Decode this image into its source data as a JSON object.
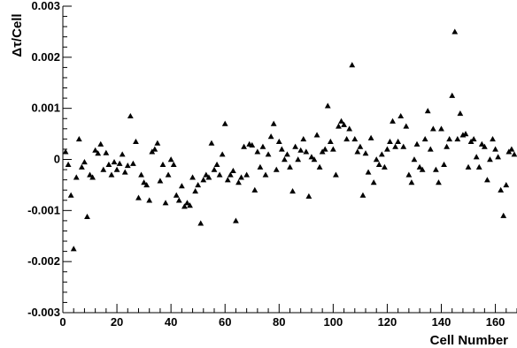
{
  "chart_data": {
    "type": "scatter",
    "title": "",
    "xlabel": "Cell Number",
    "ylabel": "Δτ/Cell",
    "xlim": [
      0,
      168
    ],
    "ylim": [
      -0.003,
      0.003
    ],
    "x_ticks": [
      0,
      20,
      40,
      60,
      80,
      100,
      120,
      140,
      160
    ],
    "x_tick_labels": [
      "0",
      "20",
      "40",
      "60",
      "80",
      "100",
      "120",
      "140",
      "160"
    ],
    "y_ticks": [
      -0.003,
      -0.002,
      -0.001,
      0,
      0.001,
      0.002,
      0.003
    ],
    "y_tick_labels": [
      "-0.003",
      "-0.002",
      "-0.001",
      "0",
      "0.001",
      "0.002",
      "0.003"
    ],
    "grid": false,
    "marker": "triangle",
    "marker_color": "#000000",
    "x": [
      1,
      2,
      3,
      4,
      5,
      6,
      7,
      8,
      9,
      10,
      11,
      12,
      13,
      14,
      15,
      16,
      17,
      18,
      19,
      20,
      21,
      22,
      23,
      24,
      25,
      26,
      27,
      28,
      29,
      30,
      31,
      32,
      33,
      34,
      35,
      36,
      37,
      38,
      39,
      40,
      41,
      42,
      43,
      44,
      45,
      46,
      47,
      48,
      49,
      50,
      51,
      52,
      53,
      54,
      55,
      56,
      57,
      58,
      59,
      60,
      61,
      62,
      63,
      64,
      65,
      66,
      67,
      68,
      69,
      70,
      71,
      72,
      73,
      74,
      75,
      76,
      77,
      78,
      79,
      80,
      81,
      82,
      83,
      84,
      85,
      86,
      87,
      88,
      89,
      90,
      91,
      92,
      93,
      94,
      95,
      96,
      97,
      98,
      99,
      100,
      101,
      102,
      103,
      104,
      105,
      106,
      107,
      108,
      109,
      110,
      111,
      112,
      113,
      114,
      115,
      116,
      117,
      118,
      119,
      120,
      121,
      122,
      123,
      124,
      125,
      126,
      127,
      128,
      129,
      130,
      131,
      132,
      133,
      134,
      135,
      136,
      137,
      138,
      139,
      140,
      141,
      142,
      143,
      144,
      145,
      146,
      147,
      148,
      149,
      150,
      151,
      152,
      153,
      154,
      155,
      156,
      157,
      158,
      159,
      160,
      161,
      162,
      163,
      164,
      165,
      166,
      167
    ],
    "y": [
      0.00015,
      -0.0001,
      -0.0007,
      -0.00175,
      -0.00035,
      0.0004,
      -0.00015,
      -5e-05,
      -0.00112,
      -0.0003,
      -0.00035,
      0.00018,
      0.00012,
      0.0003,
      -0.0002,
      0.00013,
      -0.0001,
      -0.0003,
      -5e-05,
      -0.0002,
      -8e-05,
      0.0001,
      -0.00025,
      -0.00012,
      0.00085,
      -8e-05,
      0.00035,
      -0.00075,
      -0.0003,
      -0.00045,
      -0.0005,
      -0.0008,
      0.00015,
      0.0002,
      0.00032,
      -0.00042,
      -0.0001,
      -0.00085,
      -0.0003,
      0.0,
      -0.0001,
      -0.0007,
      -0.0008,
      -0.00052,
      -0.00092,
      -0.00085,
      -0.0009,
      -0.00035,
      -0.00062,
      -0.0005,
      -0.00125,
      -0.0004,
      -0.0003,
      -0.00035,
      0.00032,
      -0.0002,
      -0.0001,
      -0.0003,
      0.0001,
      0.0007,
      -0.0004,
      -0.0003,
      -0.00022,
      -0.0012,
      -0.00045,
      -0.00035,
      0.00025,
      -0.0003,
      0.0003,
      0.00028,
      -0.0006,
      0.00015,
      -0.00015,
      0.00025,
      -0.0003,
      0.0001,
      0.00045,
      0.0007,
      -0.0002,
      0.00035,
      0.0002,
      0.0,
      0.0001,
      -0.00015,
      -0.00062,
      0.00025,
      0.0,
      0.00018,
      0.0004,
      0.00015,
      -0.00072,
      5e-05,
      0.0,
      0.00048,
      -0.00015,
      0.00015,
      0.0002,
      0.00105,
      0.00035,
      0.0002,
      -0.0003,
      0.00065,
      0.00075,
      0.00068,
      0.0004,
      0.0006,
      0.00185,
      0.0004,
      0.00015,
      0.00025,
      -0.0007,
      0.00012,
      -0.00025,
      0.00042,
      -0.00045,
      0.0,
      -0.0001,
      0.0001,
      -0.00015,
      0.0002,
      0.00035,
      0.00075,
      0.00025,
      0.00035,
      0.00085,
      0.00025,
      0.00065,
      -0.0003,
      -0.00045,
      0.0,
      0.0003,
      -0.00015,
      -0.0002,
      0.0004,
      0.00095,
      0.0002,
      0.0006,
      -0.0002,
      -0.00045,
      0.0006,
      -0.0001,
      0.00025,
      0.0004,
      0.00125,
      0.0025,
      0.0004,
      0.0009,
      0.00048,
      0.0005,
      -0.00015,
      0.00035,
      0.0004,
      5e-05,
      -0.00015,
      0.0003,
      0.00025,
      -0.0004,
      0.0,
      0.0004,
      0.0002,
      5e-05,
      -0.0006,
      -0.0011,
      -0.0005,
      0.00015,
      0.0002,
      0.0001
    ],
    "legend": "none"
  }
}
